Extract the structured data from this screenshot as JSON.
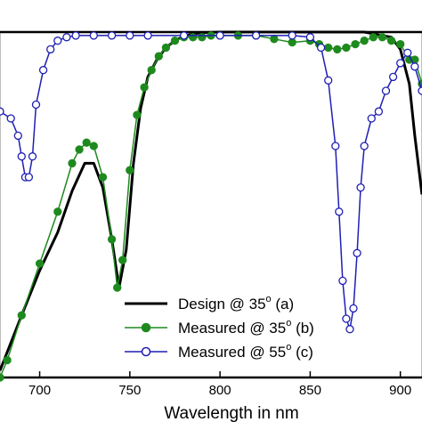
{
  "chart_data": {
    "type": "line",
    "title": "",
    "xlabel": "Wavelength in nm",
    "ylabel": "",
    "xlim": [
      678,
      912
    ],
    "ylim": [
      0,
      1
    ],
    "xticks": [
      700,
      750,
      800,
      850,
      900
    ],
    "xtick_labels": [
      "700",
      "750",
      "800",
      "850",
      "900"
    ],
    "grid": false,
    "legend_position": "bottom-right",
    "legend": [
      {
        "text": "Design @ 35",
        "sup": "o",
        "suffix": " (a)"
      },
      {
        "text": "Measured @ 35",
        "sup": "o",
        "suffix": " (b)"
      },
      {
        "text": "Measured @ 55",
        "sup": "o",
        "suffix": " (c)"
      }
    ],
    "series": [
      {
        "name": "Design @ 35o (a)",
        "color": "#000000",
        "marker": "none",
        "x": [
          678,
          690,
          700,
          710,
          718,
          725,
          730,
          735,
          740,
          744,
          748,
          752,
          756,
          760,
          765,
          770,
          775,
          780,
          785,
          790,
          800,
          850,
          870,
          880,
          890,
          895,
          900,
          905,
          908,
          912
        ],
        "y": [
          0.02,
          0.18,
          0.31,
          0.42,
          0.54,
          0.62,
          0.62,
          0.55,
          0.4,
          0.26,
          0.37,
          0.62,
          0.78,
          0.87,
          0.92,
          0.955,
          0.975,
          0.988,
          0.995,
          0.998,
          1.0,
          1.0,
          1.0,
          1.0,
          0.99,
          0.985,
          0.95,
          0.85,
          0.7,
          0.53
        ]
      },
      {
        "name": "Measured @ 35o (b)",
        "color": "#1e8a1e",
        "marker": "filled-circle",
        "x": [
          678,
          682,
          690,
          700,
          710,
          718,
          722,
          726,
          730,
          735,
          740,
          743,
          746,
          750,
          754,
          758,
          762,
          766,
          770,
          775,
          780,
          785,
          790,
          795,
          800,
          810,
          820,
          830,
          840,
          850,
          855,
          860,
          865,
          870,
          875,
          880,
          885,
          890,
          895,
          900,
          905,
          908,
          912
        ],
        "y": [
          0.0,
          0.05,
          0.18,
          0.33,
          0.48,
          0.62,
          0.66,
          0.68,
          0.67,
          0.58,
          0.4,
          0.26,
          0.34,
          0.6,
          0.76,
          0.84,
          0.89,
          0.93,
          0.955,
          0.975,
          0.985,
          0.985,
          0.985,
          0.99,
          0.99,
          0.99,
          0.99,
          0.98,
          0.97,
          0.975,
          0.965,
          0.955,
          0.95,
          0.955,
          0.965,
          0.975,
          0.985,
          0.985,
          0.975,
          0.965,
          0.92,
          0.92,
          0.85
        ]
      },
      {
        "name": "Measured @ 55o (c)",
        "color": "#1f1fb4",
        "marker": "open-circle",
        "x": [
          678,
          684,
          688,
          690,
          692,
          694,
          696,
          698,
          702,
          706,
          710,
          715,
          720,
          730,
          740,
          750,
          760,
          780,
          800,
          820,
          840,
          850,
          856,
          860,
          864,
          866,
          868,
          870,
          872,
          874,
          876,
          878,
          880,
          884,
          888,
          892,
          896,
          900,
          904,
          908,
          912
        ],
        "y": [
          0.77,
          0.75,
          0.7,
          0.64,
          0.58,
          0.58,
          0.64,
          0.79,
          0.89,
          0.95,
          0.975,
          0.985,
          0.99,
          0.99,
          0.99,
          0.99,
          0.99,
          0.99,
          0.99,
          0.99,
          0.99,
          0.985,
          0.955,
          0.86,
          0.67,
          0.48,
          0.28,
          0.17,
          0.14,
          0.2,
          0.36,
          0.55,
          0.67,
          0.75,
          0.77,
          0.83,
          0.87,
          0.91,
          0.94,
          0.9,
          0.83
        ]
      }
    ]
  }
}
